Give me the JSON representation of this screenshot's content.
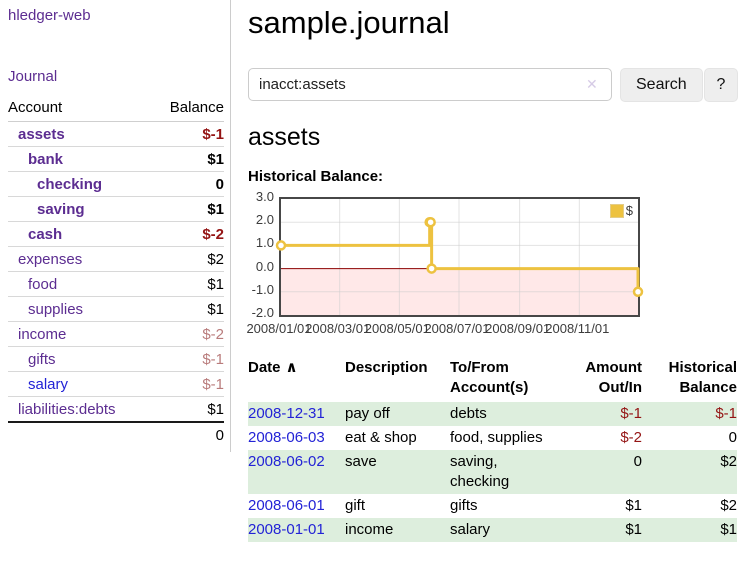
{
  "colors": {
    "purple": "#5c2d91",
    "blue": "#2323d6",
    "negStrong": "#941414",
    "negSoft": "#b97c7c",
    "rowGreen": "#ddeedd",
    "gold": "#edc240",
    "chartNegativeRegion": "#ff5050",
    "chartZeroLine": "#8b0000",
    "gridline": "#cccccc"
  },
  "app": {
    "brand": "hledger-web",
    "nav_journal": "Journal"
  },
  "sidebar": {
    "headers": {
      "account": "Account",
      "balance": "Balance"
    },
    "accounts": [
      {
        "name": "assets",
        "indent": 1,
        "bold": true,
        "balance": "$-1",
        "balance_style": "neg-strong",
        "link": "purple"
      },
      {
        "name": "bank",
        "indent": 2,
        "bold": true,
        "balance": "$1",
        "balance_style": "",
        "link": "purple"
      },
      {
        "name": "checking",
        "indent": 3,
        "bold": true,
        "balance": "0",
        "balance_style": "",
        "link": "purple"
      },
      {
        "name": "saving",
        "indent": 3,
        "bold": true,
        "balance": "$1",
        "balance_style": "",
        "link": "purple"
      },
      {
        "name": "cash",
        "indent": 2,
        "bold": true,
        "balance": "$-2",
        "balance_style": "neg-strong",
        "link": "purple"
      },
      {
        "name": "expenses",
        "indent": 1,
        "bold": false,
        "balance": "$2",
        "balance_style": "",
        "link": "purple"
      },
      {
        "name": "food",
        "indent": 2,
        "bold": false,
        "balance": "$1",
        "balance_style": "",
        "link": "purple"
      },
      {
        "name": "supplies",
        "indent": 2,
        "bold": false,
        "balance": "$1",
        "balance_style": "",
        "link": "purple"
      },
      {
        "name": "income",
        "indent": 1,
        "bold": false,
        "balance": "$-2",
        "balance_style": "neg-soft",
        "link": "purple"
      },
      {
        "name": "gifts",
        "indent": 2,
        "bold": false,
        "balance": "$-1",
        "balance_style": "neg-soft",
        "link": "purple"
      },
      {
        "name": "salary",
        "indent": 2,
        "bold": false,
        "balance": "$-1",
        "balance_style": "neg-soft",
        "link": "blue"
      },
      {
        "name": "liabilities:debts",
        "indent": 1,
        "bold": false,
        "balance": "$1",
        "balance_style": "",
        "link": "purple"
      }
    ],
    "total": "0"
  },
  "header": {
    "title": "sample.journal"
  },
  "search": {
    "value": "inacct:assets",
    "clear_icon": "✕",
    "search_label": "Search",
    "help_label": "?"
  },
  "main": {
    "account_heading": "assets",
    "chart_label": "Historical Balance:"
  },
  "chart_data": {
    "type": "line",
    "step": true,
    "series": [
      {
        "name": "$",
        "color": "#edc240",
        "points": [
          [
            "2008-01-01",
            1
          ],
          [
            "2008-06-01",
            2
          ],
          [
            "2008-06-02",
            2
          ],
          [
            "2008-06-03",
            0
          ],
          [
            "2008-12-31",
            -1
          ]
        ]
      }
    ],
    "x_range": [
      "2008-01-01",
      "2008-12-31"
    ],
    "ylim": [
      -2,
      3
    ],
    "y_ticks": [
      "3.0",
      "2.0",
      "1.0",
      "0.0",
      "-1.0",
      "-2.0"
    ],
    "x_ticks": [
      "2008/01/01",
      "2008/03/01",
      "2008/05/01",
      "2008/07/01",
      "2008/09/01",
      "2008/11/01"
    ],
    "legend_position": "top-right",
    "grid": true,
    "negative_region": true
  },
  "register": {
    "sort_indicator": "∧",
    "headers": [
      {
        "label": "Date"
      },
      {
        "label": "Description"
      },
      {
        "label": "To/From Account(s)"
      },
      {
        "label": "Amount Out/In"
      },
      {
        "label": "Historical Balance"
      }
    ],
    "rows": [
      {
        "date": "2008-12-31",
        "description": "pay off",
        "accounts": "debts",
        "amount": "$-1",
        "amount_neg": true,
        "balance": "$-1",
        "balance_neg": true,
        "highlight": true
      },
      {
        "date": "2008-06-03",
        "description": "eat & shop",
        "accounts": "food, supplies",
        "amount": "$-2",
        "amount_neg": true,
        "balance": "0",
        "balance_neg": false,
        "highlight": false
      },
      {
        "date": "2008-06-02",
        "description": "save",
        "accounts": "saving, checking",
        "amount": "0",
        "amount_neg": false,
        "balance": "$2",
        "balance_neg": false,
        "highlight": true
      },
      {
        "date": "2008-06-01",
        "description": "gift",
        "accounts": "gifts",
        "amount": "$1",
        "amount_neg": false,
        "balance": "$2",
        "balance_neg": false,
        "highlight": false
      },
      {
        "date": "2008-01-01",
        "description": "income",
        "accounts": "salary",
        "amount": "$1",
        "amount_neg": false,
        "balance": "$1",
        "balance_neg": false,
        "highlight": true
      }
    ]
  }
}
